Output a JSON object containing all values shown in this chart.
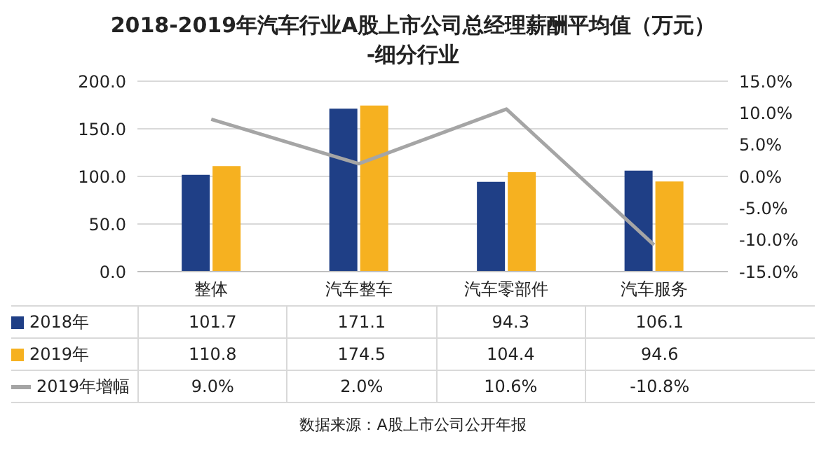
{
  "chart_data": {
    "type": "bar",
    "title": "2018-2019年汽车行业A股上市公司总经理薪酬平均值（万元）\n-细分行业",
    "categories": [
      "整体",
      "汽车整车",
      "汽车零部件",
      "汽车服务"
    ],
    "series": [
      {
        "name": "2018年",
        "color": "#1f3f86",
        "values": [
          101.7,
          171.1,
          94.3,
          106.1
        ],
        "value_labels": [
          "101.7",
          "171.1",
          "94.3",
          "106.1"
        ]
      },
      {
        "name": "2019年",
        "color": "#f6b120",
        "values": [
          110.8,
          174.5,
          104.4,
          94.6
        ],
        "value_labels": [
          "110.8",
          "174.5",
          "104.4",
          "94.6"
        ]
      },
      {
        "name": "2019年增幅",
        "type": "line",
        "axis": "y2",
        "color": "#a5a5a5",
        "values": [
          9.0,
          2.0,
          10.6,
          -10.8
        ],
        "value_labels": [
          "9.0%",
          "2.0%",
          "10.6%",
          "-10.8%"
        ]
      }
    ],
    "ylim": [
      0,
      200
    ],
    "yticks": [
      {
        "value": 0,
        "label": "0.0"
      },
      {
        "value": 50,
        "label": "50.0"
      },
      {
        "value": 100,
        "label": "100.0"
      },
      {
        "value": 150,
        "label": "150.0"
      },
      {
        "value": 200,
        "label": "200.0"
      }
    ],
    "y2lim": [
      -15,
      15
    ],
    "y2ticks": [
      {
        "value": -15,
        "label": "-15.0%"
      },
      {
        "value": -10,
        "label": "-10.0%"
      },
      {
        "value": -5,
        "label": "-5.0%"
      },
      {
        "value": 0,
        "label": "0.0%"
      },
      {
        "value": 5,
        "label": "5.0%"
      },
      {
        "value": 10,
        "label": "10.0%"
      },
      {
        "value": 15,
        "label": "15.0%"
      }
    ],
    "grid": "y",
    "marker": "none",
    "line_style": "solid",
    "legend": "bottom",
    "annotations": [
      "数据来源：A股上市公司公开年报"
    ]
  }
}
